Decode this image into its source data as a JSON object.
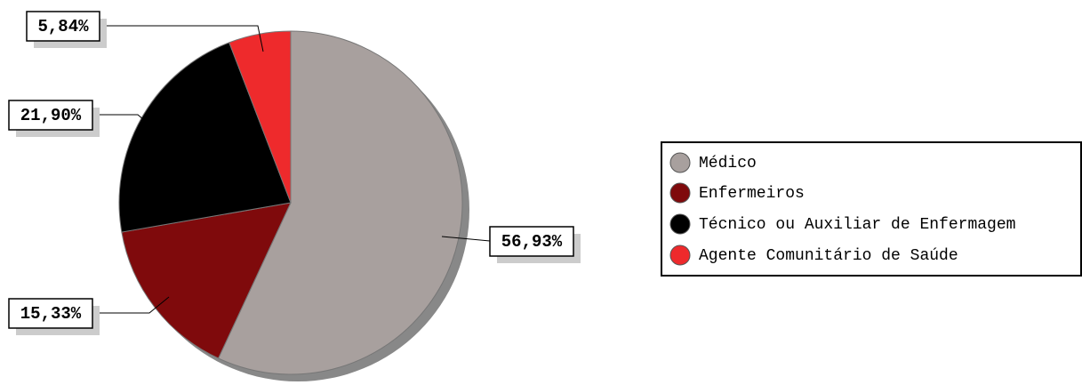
{
  "chart_data": {
    "type": "pie",
    "categories": [
      "Médico",
      "Enfermeiros",
      "Técnico ou Auxiliar de Enfermagem",
      "Agente Comunitário de Saúde"
    ],
    "values": [
      56.93,
      15.33,
      21.9,
      5.84
    ],
    "value_labels": [
      "56,93%",
      "15,33%",
      "21,90%",
      "5,84%"
    ],
    "colors": [
      "#a8a09e",
      "#7f0a0c",
      "#000000",
      "#ee2a2c"
    ],
    "legend": "right"
  }
}
